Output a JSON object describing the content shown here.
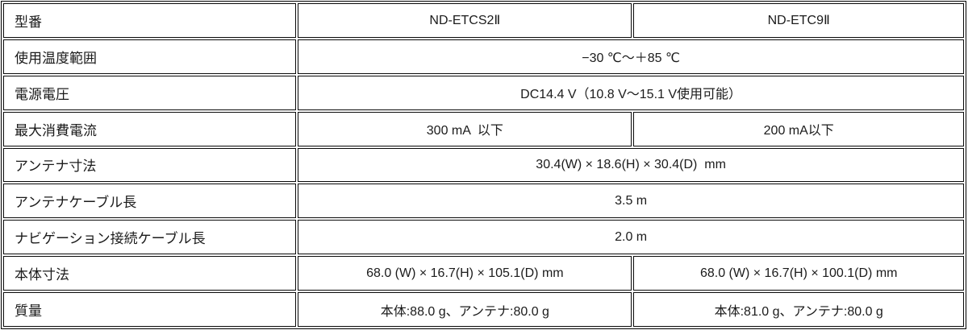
{
  "table": {
    "description_colors": {
      "border": "#000000",
      "background": "#ffffff",
      "text": "#1b1b1b"
    },
    "rows": [
      {
        "label": "型番",
        "values": [
          "ND-ETCS2Ⅱ",
          "ND-ETC9Ⅱ"
        ]
      },
      {
        "label": "使用温度範囲",
        "values": [
          "−30 ℃～＋85 ℃"
        ]
      },
      {
        "label": "電源電圧",
        "values": [
          "DC14.4 V（10.8 V～15.1 V使用可能）"
        ]
      },
      {
        "label": "最大消費電流",
        "values": [
          "300 mA  以下",
          "200 mA以下"
        ]
      },
      {
        "label": "アンテナ寸法",
        "values": [
          "30.4(W) × 18.6(H) × 30.4(D)  mm"
        ]
      },
      {
        "label": "アンテナケーブル長",
        "values": [
          "3.5 m"
        ]
      },
      {
        "label": "ナビゲーション接続ケーブル長",
        "values": [
          "2.0 m"
        ]
      },
      {
        "label": "本体寸法",
        "values": [
          "68.0 (W) × 16.7(H) × 105.1(D) mm",
          "68.0 (W) × 16.7(H) × 100.1(D) mm"
        ]
      },
      {
        "label": "質量",
        "values": [
          "本体:88.0 g、アンテナ:80.0 g",
          "本体:81.0 g、アンテナ:80.0 g"
        ]
      }
    ]
  }
}
